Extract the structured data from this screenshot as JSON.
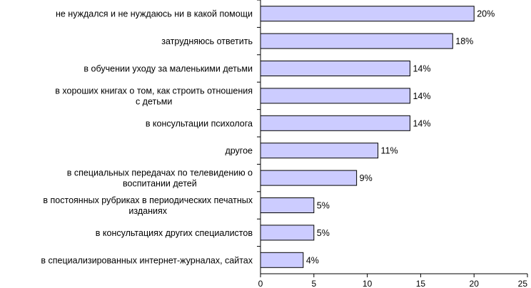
{
  "chart_data": {
    "type": "bar",
    "orientation": "horizontal",
    "title": "",
    "xlabel": "",
    "ylabel": "",
    "categories": [
      "не нуждался и не нуждаюсь ни в какой помощи",
      "затрудняюсь ответить",
      "в обучении уходу за маленькими детьми",
      "в хороших книгах о том, как строить отношения с детьми",
      "в консультации психолога",
      "другое",
      "в специальных передачах по телевидению о воспитании детей",
      "в постоянных рубриках в периодических печатных изданиях",
      "в консультациях других специалистов",
      "в специализированных интернет-журналах, сайтах"
    ],
    "values": [
      20,
      18,
      14,
      14,
      14,
      11,
      9,
      5,
      5,
      4
    ],
    "value_labels": [
      "20%",
      "18%",
      "14%",
      "14%",
      "14%",
      "11%",
      "9%",
      "5%",
      "5%",
      "4%"
    ],
    "xlim": [
      0,
      25
    ],
    "xticks": [
      0,
      5,
      10,
      15,
      20,
      25
    ],
    "grid": false,
    "legend": "none",
    "colors": {
      "bar_fill": "#ccccff",
      "bar_stroke": "#000000",
      "axis": "#000000"
    }
  }
}
